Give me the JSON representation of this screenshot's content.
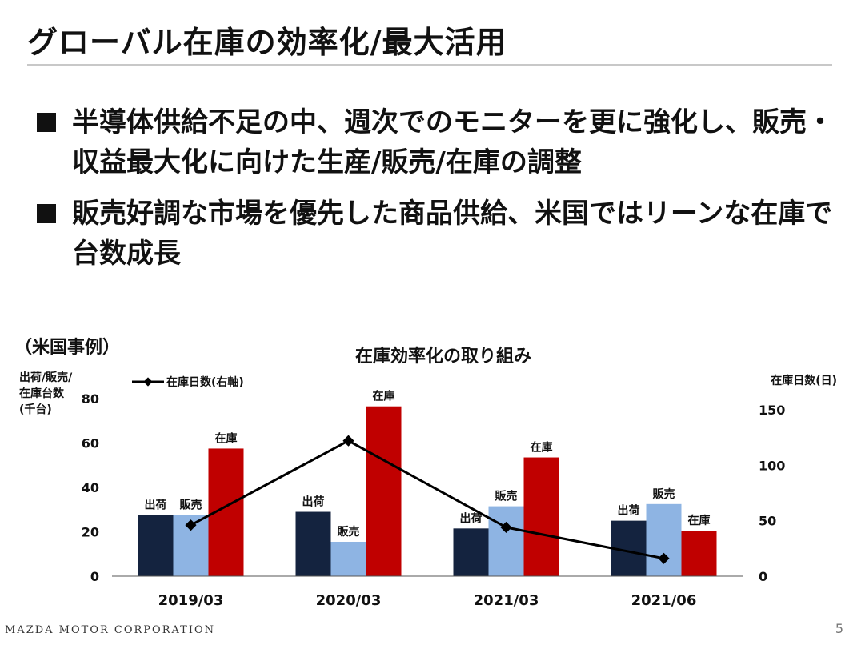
{
  "slide": {
    "title": "グローバル在庫の効率化/最大活用",
    "bullets": [
      {
        "text": "半導体供給不足の中、週次でのモニターを更に強化し、販売・収益最大化に向けた生産/販売/在庫の調整"
      },
      {
        "text": "販売好調な市場を優先した商品供給、米国ではリーンな在庫で台数成長"
      }
    ],
    "case_label": "（米国事例）",
    "footer": "MAZDA MOTOR CORPORATION",
    "page_number": "5"
  },
  "chart_data": {
    "type": "bar",
    "title": "在庫効率化の取り組み",
    "ylabel_left": "出荷/販売/在庫台数(千台)",
    "ylabel_left_lines": [
      "出荷/販売/",
      "在庫台数",
      "(千台)"
    ],
    "ylabel_right": "在庫日数(日)",
    "ylim_left": [
      0,
      80
    ],
    "yticks_left": [
      0,
      20,
      40,
      60,
      80
    ],
    "ylim_right": [
      0,
      160
    ],
    "yticks_right": [
      0,
      50,
      100,
      150
    ],
    "categories": [
      "2019/03",
      "2020/03",
      "2021/03",
      "2021/06"
    ],
    "series": [
      {
        "name": "出荷",
        "axis": "left",
        "color": "#14233f",
        "values": [
          27.5,
          29,
          21.5,
          25
        ]
      },
      {
        "name": "販売",
        "axis": "left",
        "color": "#8eb4e3",
        "values": [
          27.5,
          15.5,
          31.5,
          32.5
        ]
      },
      {
        "name": "在庫",
        "axis": "left",
        "color": "#c00000",
        "values": [
          57.5,
          76.5,
          53.5,
          20.5
        ]
      }
    ],
    "line_series": {
      "name": "在庫日数(右軸)",
      "axis": "right",
      "color": "#000000",
      "values": [
        46,
        122,
        44,
        16
      ]
    },
    "legend": "top-left"
  }
}
